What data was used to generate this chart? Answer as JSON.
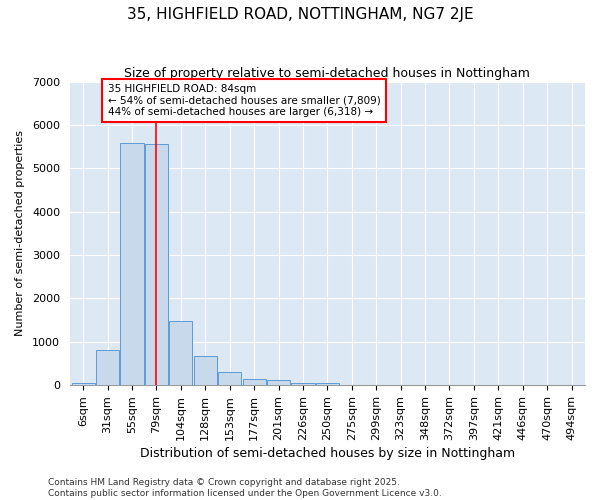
{
  "title": "35, HIGHFIELD ROAD, NOTTINGHAM, NG7 2JE",
  "subtitle": "Size of property relative to semi-detached houses in Nottingham",
  "xlabel": "Distribution of semi-detached houses by size in Nottingham",
  "ylabel": "Number of semi-detached properties",
  "categories": [
    "6sqm",
    "31sqm",
    "55sqm",
    "79sqm",
    "104sqm",
    "128sqm",
    "153sqm",
    "177sqm",
    "201sqm",
    "226sqm",
    "250sqm",
    "275sqm",
    "299sqm",
    "323sqm",
    "348sqm",
    "372sqm",
    "397sqm",
    "421sqm",
    "446sqm",
    "470sqm",
    "494sqm"
  ],
  "values": [
    40,
    820,
    5580,
    5560,
    1480,
    680,
    300,
    140,
    120,
    50,
    50,
    0,
    0,
    0,
    0,
    0,
    0,
    0,
    0,
    0,
    0
  ],
  "bar_color": "#c9d9ec",
  "bar_edge_color": "#5b9bd5",
  "highlight_line_index": 3,
  "highlight_line_color": "red",
  "annotation_text": "35 HIGHFIELD ROAD: 84sqm\n← 54% of semi-detached houses are smaller (7,809)\n44% of semi-detached houses are larger (6,318) →",
  "annotation_box_facecolor": "white",
  "annotation_box_edgecolor": "red",
  "ylim": [
    0,
    7000
  ],
  "yticks": [
    0,
    1000,
    2000,
    3000,
    4000,
    5000,
    6000,
    7000
  ],
  "background_color": "#ffffff",
  "plot_bg_color": "#dde8f5",
  "grid_color": "#ffffff",
  "footer_text": "Contains HM Land Registry data © Crown copyright and database right 2025.\nContains public sector information licensed under the Open Government Licence v3.0.",
  "title_fontsize": 11,
  "subtitle_fontsize": 9,
  "xlabel_fontsize": 9,
  "ylabel_fontsize": 8,
  "tick_fontsize": 8,
  "annotation_fontsize": 7.5,
  "footer_fontsize": 6.5
}
